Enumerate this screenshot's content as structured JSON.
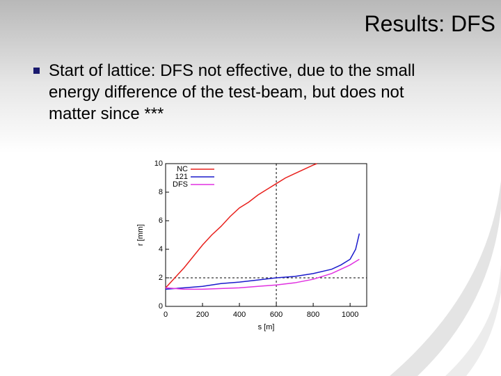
{
  "slide": {
    "title": "Results: DFS",
    "bullets": [
      "Start of lattice: DFS not effective, due to the small energy difference of the test-beam, but does not matter since ***"
    ]
  },
  "chart_data": {
    "type": "line",
    "xlabel": "s [m]",
    "ylabel": "r [mm]",
    "xlim": [
      0,
      1090
    ],
    "ylim": [
      0,
      10
    ],
    "xticks": [
      0,
      200,
      400,
      600,
      800,
      1000
    ],
    "yticks": [
      0,
      2,
      4,
      6,
      8,
      10
    ],
    "reference_lines": {
      "x": 600,
      "y": 2
    },
    "legend": "top-left",
    "series": [
      {
        "name": "NC",
        "color": "#e8201c",
        "x": [
          0,
          50,
          100,
          150,
          200,
          250,
          300,
          350,
          400,
          450,
          500,
          550,
          600,
          650,
          700,
          750,
          800,
          820
        ],
        "values": [
          1.3,
          2.0,
          2.7,
          3.5,
          4.3,
          5.0,
          5.6,
          6.3,
          6.9,
          7.3,
          7.8,
          8.2,
          8.6,
          9.0,
          9.3,
          9.6,
          9.9,
          10
        ]
      },
      {
        "name": "121",
        "color": "#1a1acc",
        "x": [
          0,
          100,
          200,
          300,
          400,
          500,
          600,
          700,
          800,
          900,
          950,
          1000,
          1030,
          1050
        ],
        "values": [
          1.2,
          1.3,
          1.4,
          1.6,
          1.7,
          1.85,
          2.0,
          2.1,
          2.3,
          2.6,
          2.9,
          3.3,
          4.0,
          5.1
        ]
      },
      {
        "name": "DFS",
        "color": "#e030e0",
        "x": [
          0,
          100,
          200,
          300,
          400,
          500,
          600,
          700,
          800,
          900,
          950,
          1000,
          1050
        ],
        "values": [
          1.3,
          1.2,
          1.2,
          1.25,
          1.3,
          1.4,
          1.5,
          1.65,
          1.9,
          2.3,
          2.6,
          2.9,
          3.3
        ]
      }
    ]
  }
}
